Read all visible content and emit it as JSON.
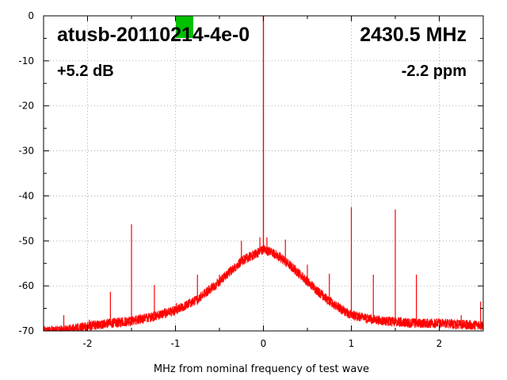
{
  "chart_data": {
    "type": "line",
    "title": "",
    "xlabel": "MHz from nominal frequency of test wave",
    "ylabel": "",
    "xlim": [
      -2.5,
      2.5
    ],
    "ylim": [
      -70,
      0
    ],
    "x_ticks": [
      -2,
      -1,
      0,
      1,
      2
    ],
    "y_ticks": [
      0,
      -10,
      -20,
      -30,
      -40,
      -50,
      -60,
      -70
    ],
    "x_tick_labels": [
      "-2",
      "-1",
      "0",
      "1",
      "2"
    ],
    "y_tick_labels": [
      "0",
      "-10",
      "-20",
      "-30",
      "-40",
      "-50",
      "-60",
      "-70"
    ],
    "grid": true,
    "series_color": "#ff0000",
    "indicator_color": "#00c000",
    "annotations": {
      "device": "atusb-20110214-4e-0",
      "frequency": "2430.5 MHz",
      "gain": "+5.2 dB",
      "offset": "-2.2 ppm"
    },
    "noise_envelope": {
      "x": [
        -2.5,
        -2.25,
        -2.0,
        -1.75,
        -1.5,
        -1.25,
        -1.0,
        -0.75,
        -0.5,
        -0.25,
        -0.1,
        0.0,
        0.1,
        0.25,
        0.5,
        0.75,
        1.0,
        1.25,
        1.5,
        1.75,
        2.0,
        2.25,
        2.5
      ],
      "y": [
        -70,
        -69.8,
        -69,
        -68.3,
        -67.8,
        -66.8,
        -65.5,
        -63,
        -59,
        -54.5,
        -53,
        -52,
        -52.5,
        -54.5,
        -59,
        -63.5,
        -66.5,
        -67.5,
        -68,
        -68.3,
        -68.3,
        -68.6,
        -68.8
      ]
    },
    "peak": {
      "x": 0.0,
      "y": 0
    },
    "spurs": [
      {
        "x": -2.27,
        "y": -66.5
      },
      {
        "x": -1.98,
        "y": -67.5
      },
      {
        "x": -1.74,
        "y": -61.3
      },
      {
        "x": -1.5,
        "y": -46.3
      },
      {
        "x": -1.24,
        "y": -59.8
      },
      {
        "x": -0.99,
        "y": -63.8
      },
      {
        "x": -0.75,
        "y": -57.5
      },
      {
        "x": -0.5,
        "y": -57.5
      },
      {
        "x": -0.25,
        "y": -50
      },
      {
        "x": -0.04,
        "y": -49.2
      },
      {
        "x": 0.04,
        "y": -49.2
      },
      {
        "x": 0.25,
        "y": -49.7
      },
      {
        "x": 0.5,
        "y": -55.3
      },
      {
        "x": 0.75,
        "y": -57.3
      },
      {
        "x": 1.0,
        "y": -42.5
      },
      {
        "x": 1.25,
        "y": -57.5
      },
      {
        "x": 1.5,
        "y": -43
      },
      {
        "x": 1.74,
        "y": -57.5
      },
      {
        "x": 2.25,
        "y": -66.5
      },
      {
        "x": 2.47,
        "y": -63.5
      }
    ]
  }
}
